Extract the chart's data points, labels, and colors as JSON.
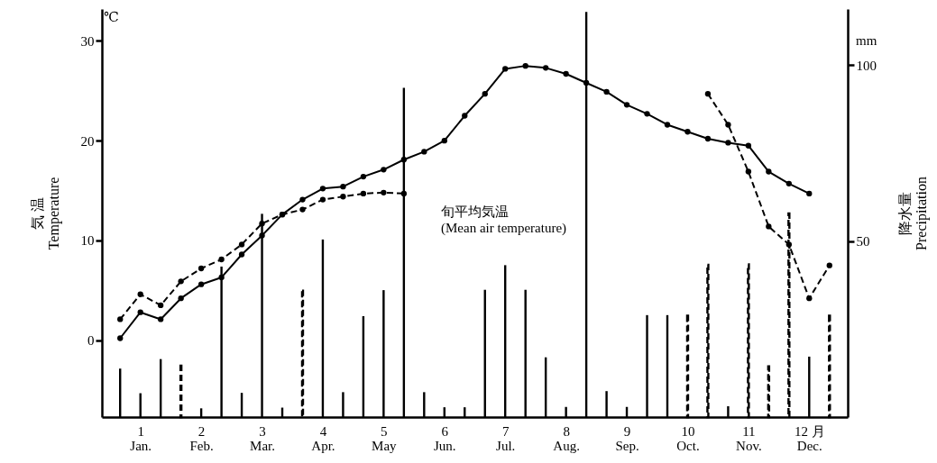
{
  "chart_data": {
    "type": "line",
    "categories": [
      null,
      "1\nJan.",
      null,
      null,
      "2\nFeb.",
      null,
      null,
      "3\nMar.",
      null,
      null,
      "4\nApr.",
      null,
      null,
      "5\nMay",
      null,
      null,
      "6\nJun.",
      null,
      null,
      "7\nJul.",
      null,
      null,
      "8\nAug.",
      null,
      null,
      "9\nSep.",
      null,
      null,
      "10\nOct.",
      null,
      null,
      "11\nNov.",
      null,
      null,
      "12 月\nDec.",
      null
    ],
    "ylim": [
      -7.7,
      33.2
    ],
    "yticks": [
      0,
      10,
      20,
      30
    ],
    "y2lim": [
      0,
      116
    ],
    "y2ticks": [
      50,
      100
    ],
    "ylabel": "気 温\nTemperature",
    "y2label": "降水量\nPrecipitation",
    "annotations": [
      "℃",
      "mm",
      "旬平均気温\n(Mean air temperature)"
    ],
    "marker": "circle",
    "series": [
      {
        "type": "bar",
        "axis": "y2",
        "color": "#000000",
        "line_style": "solid",
        "values": [
          13.6,
          6.6,
          16.3,
          null,
          2.3,
          42.6,
          6.7,
          57.6,
          2.5,
          null,
          50.3,
          6.9,
          28.5,
          35.9,
          93.4,
          6.9,
          2.6,
          2.6,
          36.0,
          43.0,
          36.0,
          16.8,
          2.7,
          115,
          7.2,
          2.7,
          28.8,
          28.8,
          null,
          null,
          2.9,
          null,
          null,
          null,
          17.0,
          null
        ]
      },
      {
        "type": "bar",
        "axis": "y2",
        "color": "#000000",
        "line_style": "dashed",
        "values": [
          null,
          null,
          null,
          14.6,
          null,
          null,
          null,
          null,
          null,
          35.9,
          null,
          null,
          null,
          null,
          null,
          null,
          null,
          null,
          null,
          null,
          null,
          null,
          null,
          null,
          null,
          null,
          null,
          null,
          null,
          null,
          null,
          null,
          null,
          null,
          null,
          null
        ]
      },
      {
        "type": "bar",
        "axis": "y2",
        "color": "#000000",
        "line_style": "dashed",
        "values": [
          null,
          null,
          null,
          null,
          null,
          null,
          null,
          null,
          null,
          null,
          null,
          null,
          null,
          null,
          null,
          null,
          null,
          null,
          null,
          null,
          null,
          null,
          null,
          null,
          null,
          null,
          null,
          null,
          28.8,
          43.3,
          null,
          43.4,
          14.4,
          57.9,
          null,
          28.8
        ]
      },
      {
        "color": "#000000",
        "line_style": "solid",
        "values": [
          0.2,
          2.8,
          2.1,
          4.2,
          5.6,
          6.3,
          8.6,
          10.5,
          12.6,
          14.1,
          15.2,
          15.4,
          16.4,
          17.1,
          18.1,
          18.9,
          20.0,
          22.5,
          24.7,
          27.2,
          27.5,
          27.3,
          26.7,
          25.8,
          24.9,
          23.6,
          22.7,
          21.6,
          20.9,
          20.2,
          19.8,
          19.5,
          16.9,
          15.7,
          14.7,
          null
        ]
      },
      {
        "color": "#000000",
        "line_style": "dashed",
        "values": [
          2.1,
          4.6,
          3.5,
          5.9,
          7.2,
          8.1,
          9.6,
          11.7,
          12.6,
          13.1,
          14.1,
          14.4,
          14.7,
          14.8,
          14.7,
          null,
          null,
          null,
          null,
          null,
          null,
          null,
          null,
          null,
          null,
          null,
          null,
          null,
          null,
          null,
          null,
          null,
          null,
          null,
          null,
          null
        ]
      },
      {
        "color": "#000000",
        "line_style": "dashed",
        "values": [
          null,
          null,
          null,
          null,
          null,
          null,
          null,
          null,
          null,
          null,
          null,
          null,
          null,
          null,
          null,
          null,
          null,
          null,
          null,
          null,
          null,
          null,
          null,
          null,
          null,
          null,
          null,
          null,
          null,
          24.7,
          21.6,
          16.9,
          11.4,
          9.6,
          4.2,
          7.5
        ]
      }
    ]
  }
}
